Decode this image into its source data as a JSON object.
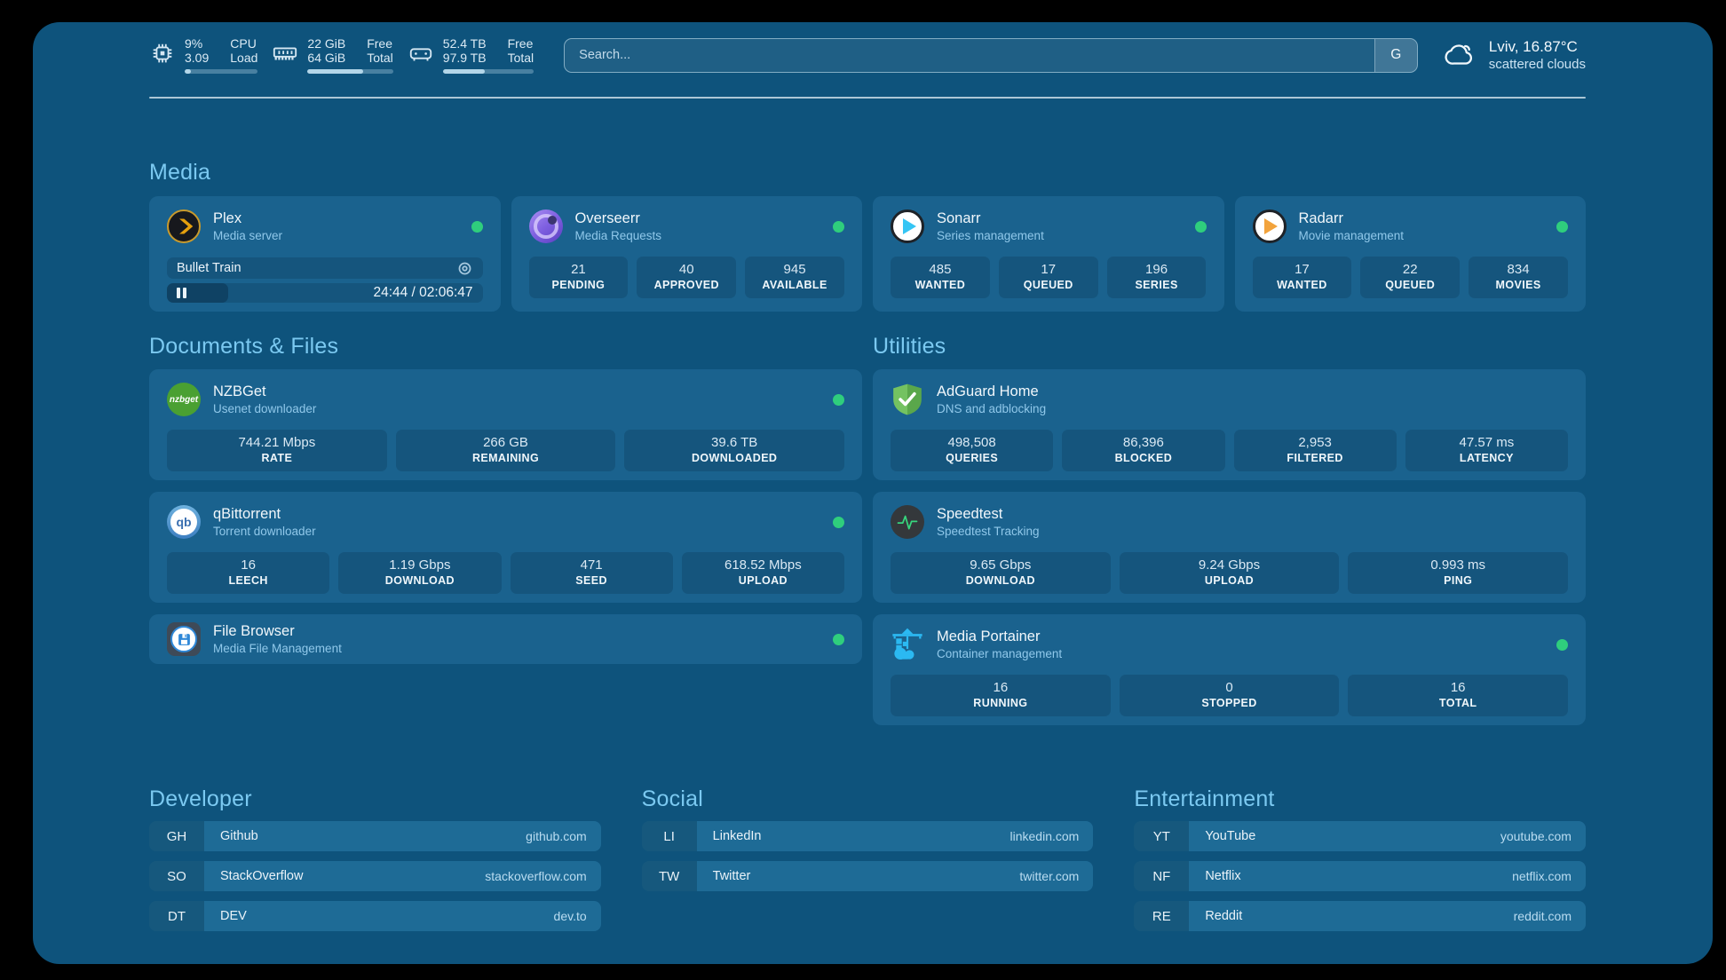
{
  "topbar": {
    "cpu": {
      "line1_value": "9%",
      "line2_value": "3.09",
      "line1_label": "CPU",
      "line2_label": "Load",
      "percent": 9
    },
    "memory": {
      "line1_value": "22 GiB",
      "line2_value": "64 GiB",
      "line1_label": "Free",
      "line2_label": "Total",
      "percent": 65
    },
    "disk": {
      "line1_value": "52.4 TB",
      "line2_value": "97.9 TB",
      "line1_label": "Free",
      "line2_label": "Total",
      "percent": 46
    },
    "search": {
      "placeholder": "Search...",
      "engine_button": "G"
    },
    "weather": {
      "location": "Lviv, 16.87°C",
      "condition": "scattered clouds"
    }
  },
  "colors": {
    "page_bg": "#0E537C",
    "card_bg": "#1A628E",
    "heading": "#7BC9F1",
    "status_online": "#2FCE7D"
  },
  "sections": {
    "media": {
      "title": "Media",
      "plex": {
        "name": "Plex",
        "subtitle": "Media server",
        "status": "online",
        "now_playing": {
          "title": "Bullet Train",
          "time_display": "24:44 / 02:06:47",
          "elapsed": "24:44",
          "duration": "02:06:47",
          "progress_percent": 19.5,
          "state": "paused"
        }
      },
      "overseerr": {
        "name": "Overseerr",
        "subtitle": "Media Requests",
        "status": "online",
        "stats": [
          {
            "value": "21",
            "label": "PENDING"
          },
          {
            "value": "40",
            "label": "APPROVED"
          },
          {
            "value": "945",
            "label": "AVAILABLE"
          }
        ]
      },
      "sonarr": {
        "name": "Sonarr",
        "subtitle": "Series management",
        "status": "online",
        "stats": [
          {
            "value": "485",
            "label": "WANTED"
          },
          {
            "value": "17",
            "label": "QUEUED"
          },
          {
            "value": "196",
            "label": "SERIES"
          }
        ]
      },
      "radarr": {
        "name": "Radarr",
        "subtitle": "Movie management",
        "status": "online",
        "stats": [
          {
            "value": "17",
            "label": "WANTED"
          },
          {
            "value": "22",
            "label": "QUEUED"
          },
          {
            "value": "834",
            "label": "MOVIES"
          }
        ]
      }
    },
    "documents": {
      "title": "Documents & Files",
      "nzbget": {
        "name": "NZBGet",
        "subtitle": "Usenet downloader",
        "status": "online",
        "icon_text": "nzbget",
        "stats": [
          {
            "value": "744.21 Mbps",
            "label": "RATE"
          },
          {
            "value": "266 GB",
            "label": "REMAINING"
          },
          {
            "value": "39.6 TB",
            "label": "DOWNLOADED"
          }
        ]
      },
      "qbittorrent": {
        "name": "qBittorrent",
        "subtitle": "Torrent downloader",
        "status": "online",
        "icon_text": "qb",
        "stats": [
          {
            "value": "16",
            "label": "LEECH"
          },
          {
            "value": "1.19 Gbps",
            "label": "DOWNLOAD"
          },
          {
            "value": "471",
            "label": "SEED"
          },
          {
            "value": "618.52 Mbps",
            "label": "UPLOAD"
          }
        ]
      },
      "filebrowser": {
        "name": "File Browser",
        "subtitle": "Media File Management",
        "status": "online"
      }
    },
    "utilities": {
      "title": "Utilities",
      "adguard": {
        "name": "AdGuard Home",
        "subtitle": "DNS and adblocking",
        "stats": [
          {
            "value": "498,508",
            "label": "QUERIES"
          },
          {
            "value": "86,396",
            "label": "BLOCKED"
          },
          {
            "value": "2,953",
            "label": "FILTERED"
          },
          {
            "value": "47.57 ms",
            "label": "LATENCY"
          }
        ]
      },
      "speedtest": {
        "name": "Speedtest",
        "subtitle": "Speedtest Tracking",
        "stats": [
          {
            "value": "9.65 Gbps",
            "label": "DOWNLOAD"
          },
          {
            "value": "9.24 Gbps",
            "label": "UPLOAD"
          },
          {
            "value": "0.993 ms",
            "label": "PING"
          }
        ]
      },
      "portainer": {
        "name": "Media Portainer",
        "subtitle": "Container management",
        "status": "online",
        "stats": [
          {
            "value": "16",
            "label": "RUNNING"
          },
          {
            "value": "0",
            "label": "STOPPED"
          },
          {
            "value": "16",
            "label": "TOTAL"
          }
        ]
      }
    },
    "bookmarks": {
      "developer": {
        "title": "Developer",
        "items": [
          {
            "abbr": "GH",
            "name": "Github",
            "url": "github.com"
          },
          {
            "abbr": "SO",
            "name": "StackOverflow",
            "url": "stackoverflow.com"
          },
          {
            "abbr": "DT",
            "name": "DEV",
            "url": "dev.to"
          }
        ]
      },
      "social": {
        "title": "Social",
        "items": [
          {
            "abbr": "LI",
            "name": "LinkedIn",
            "url": "linkedin.com"
          },
          {
            "abbr": "TW",
            "name": "Twitter",
            "url": "twitter.com"
          }
        ]
      },
      "entertainment": {
        "title": "Entertainment",
        "items": [
          {
            "abbr": "YT",
            "name": "YouTube",
            "url": "youtube.com"
          },
          {
            "abbr": "NF",
            "name": "Netflix",
            "url": "netflix.com"
          },
          {
            "abbr": "RE",
            "name": "Reddit",
            "url": "reddit.com"
          }
        ]
      }
    }
  }
}
